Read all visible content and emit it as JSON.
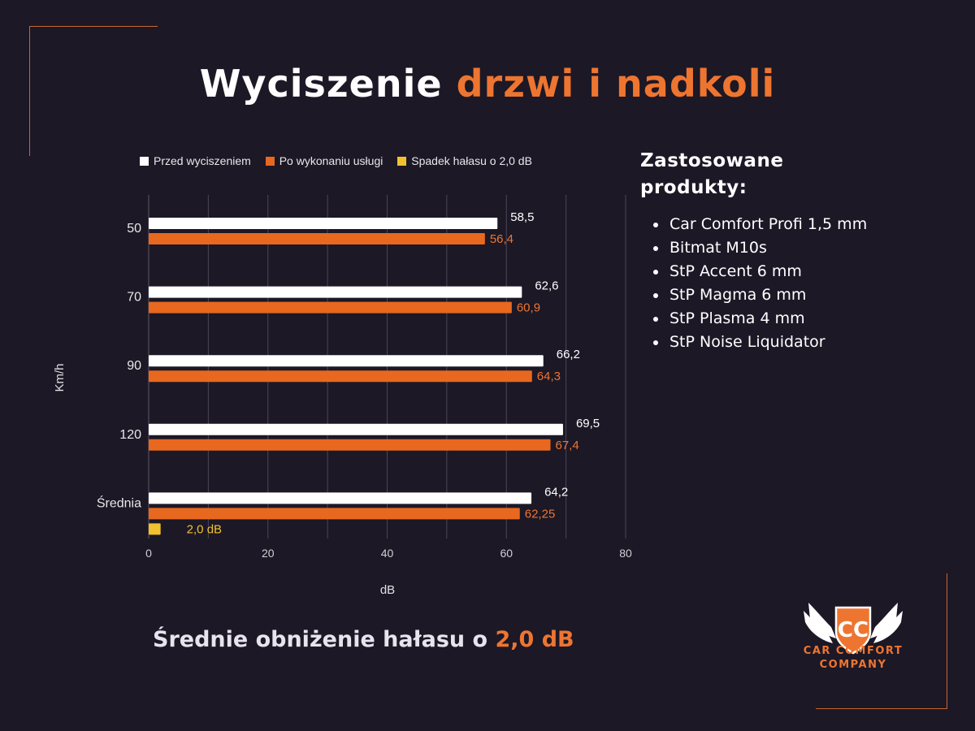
{
  "title": {
    "part1": "Wyciszenie",
    "part2": "drzwi i nadkoli"
  },
  "colors": {
    "background": "#1c1826",
    "accent": "#ee7530",
    "before": "#ffffff",
    "after": "#e8681f",
    "drop": "#f2c12e"
  },
  "chart_data": {
    "type": "bar",
    "orientation": "horizontal",
    "categories": [
      "50",
      "70",
      "90",
      "120",
      "Średnia"
    ],
    "series": [
      {
        "name": "Przed wyciszeniem",
        "values": [
          58.5,
          62.6,
          66.2,
          69.5,
          64.2
        ],
        "labels": [
          "58,5",
          "62,6",
          "66,2",
          "69,5",
          "64,2"
        ],
        "color": "#ffffff"
      },
      {
        "name": "Po wykonaniu usługi",
        "values": [
          56.4,
          60.9,
          64.3,
          67.4,
          62.25
        ],
        "labels": [
          "56,4",
          "60,9",
          "64,3",
          "67,4",
          "62,25"
        ],
        "color": "#e8681f"
      },
      {
        "name": "Spadek hałasu o 2,0 dB",
        "values": [
          null,
          null,
          null,
          null,
          2.0
        ],
        "labels": [
          "",
          "",
          "",
          "",
          "2,0 dB"
        ],
        "color": "#f2c12e"
      }
    ],
    "xlabel": "dB",
    "ylabel": "Km/h",
    "xlim": [
      0,
      80
    ],
    "xticks": [
      "0",
      "20",
      "40",
      "60",
      "80"
    ],
    "grid": true,
    "legend": "top"
  },
  "products": {
    "title_line1": "Zastosowane",
    "title_line2": "produkty:",
    "items": [
      "Car Comfort Profi 1,5 mm",
      "Bitmat M10s",
      "StP Accent 6 mm",
      "StP Magma 6 mm",
      "StP Plasma 4 mm",
      "StP Noise Liquidator"
    ]
  },
  "summary": {
    "text": "Średnie obniżenie hałasu o",
    "value": "2,0 dB"
  },
  "logo": {
    "monogram": "CC",
    "line1": "CAR COMFORT",
    "line2": "COMPANY",
    "icon": "winged-shield-logo"
  }
}
